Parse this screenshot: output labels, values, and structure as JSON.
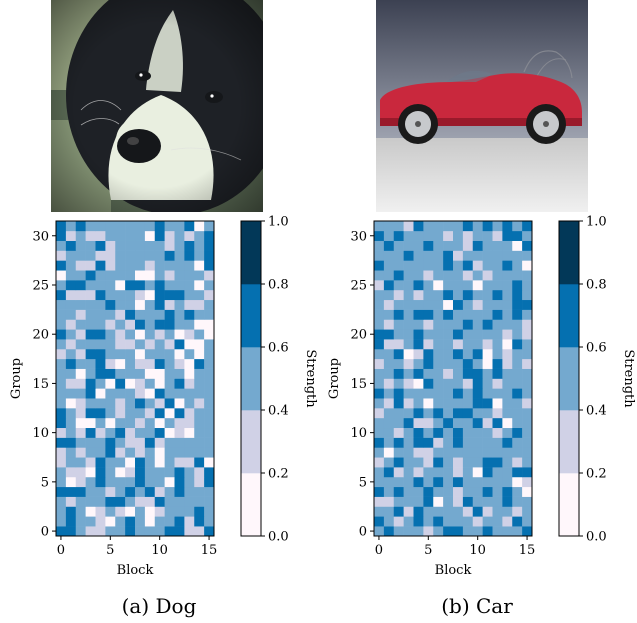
{
  "figures": [
    {
      "caption": "(a) Dog",
      "image": {
        "subject": "dog",
        "colors": {
          "bg": "#5b6b55",
          "fur_dark": "#1e2126",
          "fur_light": "#e9efe0",
          "nose": "#15171a",
          "tint": "#c9d6a8"
        }
      }
    },
    {
      "caption": "(b) Car",
      "image": {
        "subject": "car",
        "colors": {
          "sky_top": "#3c4152",
          "sky_bottom": "#9ea3b0",
          "floor": "#dcdcdc",
          "body": "#c9283d",
          "wheel": "#c7c9cc",
          "tire": "#1a1a1a"
        }
      }
    }
  ],
  "palette": {
    "levels": [
      "#fff7fb",
      "#d0d1e6",
      "#74a9cf",
      "#0570b0",
      "#023858"
    ],
    "grid": "#d9d9d9"
  },
  "chart_data": [
    {
      "type": "heatmap",
      "title": "",
      "xlabel": "Block",
      "ylabel": "Group",
      "colorbar_label": "Strength",
      "x_ticks": [
        0,
        5,
        10,
        15
      ],
      "y_ticks": [
        0,
        5,
        10,
        15,
        20,
        25,
        30
      ],
      "colorbar_ticks": [
        "0.0",
        "0.2",
        "0.4",
        "0.6",
        "0.8",
        "1.0"
      ],
      "vmin": 0.0,
      "vmax": 1.0,
      "n_blocks": 16,
      "n_groups": 32,
      "values": [
        "3321122322233113",
        "2322102320223132",
        "2320121020122232",
        "2122233211322222",
        "3332212323123222",
        "2012322232203213",
        "2110320132223213",
        "1221322032021130",
        "1212231212022222",
        "3322232113122222",
        "1213123122301022",
        "3200202212021122",
        "3213321221303122",
        "2012221232130212",
        "2223022210322222",
        "2113203012023122",
        "2202332220022022",
        "2322310211321032",
        "1213322202220202",
        "2122221121213002",
        "3213321202120120",
        "2122212132332200",
        "2212221322232322",
        "2222232202312112",
        "3111322210333221",
        "2332220332322202",
        "0223222200212221",
        "3211312221222203",
        "1222112222232323",
        "2322312222212323",
        "3121122220312123",
        "3232222222322302"
      ]
    },
    {
      "type": "heatmap",
      "title": "",
      "xlabel": "Block",
      "ylabel": "Group",
      "colorbar_label": "Strength",
      "x_ticks": [
        0,
        5,
        10,
        15
      ],
      "y_ticks": [
        0,
        5,
        10,
        15,
        20,
        25,
        30
      ],
      "colorbar_ticks": [
        "0.0",
        "0.2",
        "0.4",
        "0.6",
        "0.8",
        "1.0"
      ],
      "vmin": 0.0,
      "vmax": 1.0,
      "n_blocks": 16,
      "n_groups": 32,
      "values": [
        "2322212332232223",
        "3212323222122132",
        "2231322221312212",
        "1122230213222322",
        "3232232212232320",
        "2222323232222201",
        "2312122212032233",
        "1232213212233212",
        "2022112222222222",
        "3232331232222322",
        "2212323232221232",
        "2223112322313022",
        "1222323233221222",
        "2131202222330221",
        "3232222232322232",
        "2121032221321222",
        "2232322123323222",
        "1221232223203121",
        "2230132232302122",
        "3112312212212032",
        "3322322232222121",
        "2122212223232221",
        "2232332322223232",
        "2122222032122233",
        "2212122323223232",
        "1322320222022232",
        "2232212221212222",
        "3222222323122320",
        "2223222312222222",
        "2322232221322203",
        "3232222121221332",
        "2221322223232323"
      ]
    }
  ]
}
